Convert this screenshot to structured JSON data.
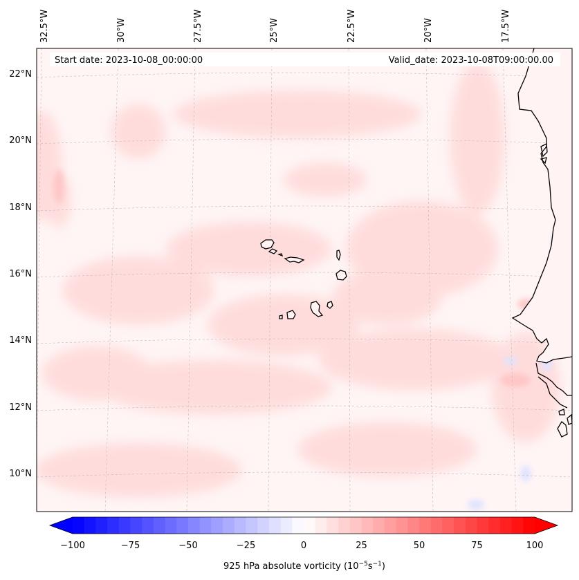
{
  "map": {
    "start_date": "Start date: 2023-10-08_00:00:00",
    "valid_date": "Valid_date: 2023-10-08T09:00:00.00",
    "lon_labels": [
      "32.5°W",
      "30°W",
      "27.5°W",
      "25°W",
      "22.5°W",
      "20°W",
      "17.5°W"
    ],
    "lat_labels": [
      "22°N",
      "20°N",
      "18°N",
      "16°N",
      "14°N",
      "12°N",
      "10°N"
    ],
    "extent": {
      "lon_min": -33.0,
      "lon_max": -16.0,
      "lat_min": 8.8,
      "lat_max": 22.8
    },
    "coast_color": "#000000",
    "grid_color": "#bbbbbb"
  },
  "colorbar": {
    "label_prefix": "925 hPa absolute vorticity (10",
    "label_exp1": "−5",
    "label_mid": "s",
    "label_exp2": "−1",
    "label_suffix": ")",
    "min": -100,
    "max": 100,
    "step": 5,
    "low_color": "#0000ff",
    "mid_color": "#ffffff",
    "high_color": "#ff0000",
    "ticks": [
      "−100",
      "−75",
      "−50",
      "−25",
      "0",
      "25",
      "50",
      "75",
      "100"
    ]
  }
}
